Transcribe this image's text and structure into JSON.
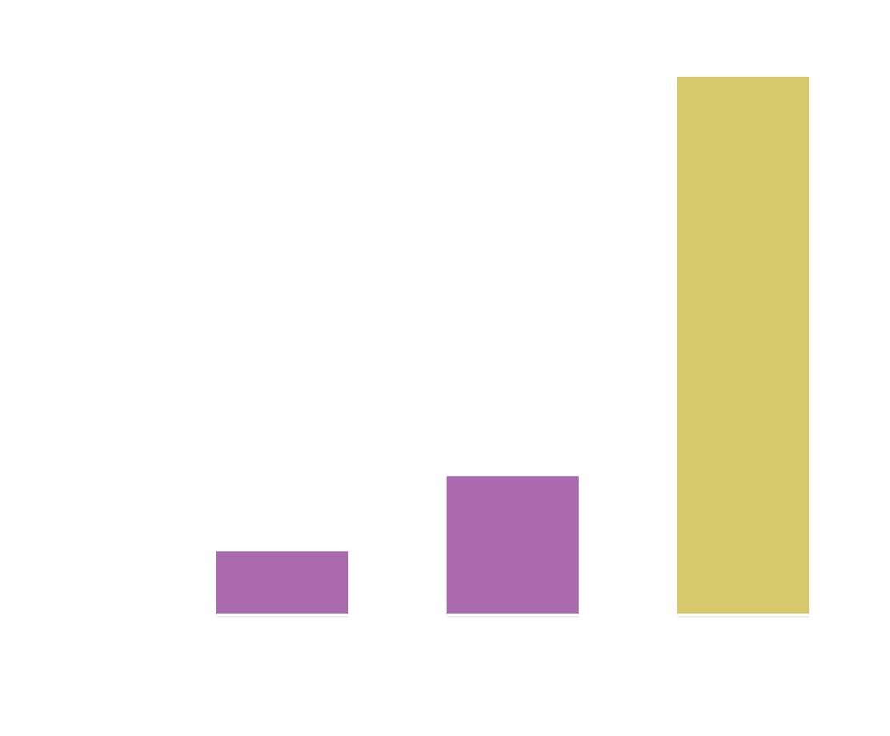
{
  "chart_data": {
    "type": "bar",
    "categories": [
      "",
      "",
      ""
    ],
    "values": [
      11.6,
      25.6,
      100
    ],
    "colors": [
      "#ab6aad",
      "#ab6aad",
      "#d6c96b"
    ],
    "ylim": [
      0,
      100
    ],
    "grid": false,
    "legend": "none",
    "title": "",
    "xlabel": "",
    "ylabel": ""
  }
}
